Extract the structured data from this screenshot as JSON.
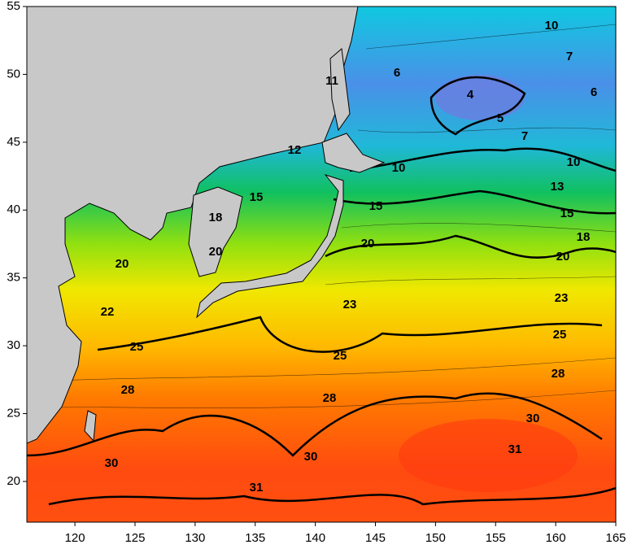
{
  "map": {
    "xlim": [
      116,
      165
    ],
    "ylim": [
      17,
      55
    ],
    "xticks": [
      120,
      125,
      130,
      135,
      140,
      145,
      150,
      155,
      160,
      165
    ],
    "yticks": [
      20,
      25,
      30,
      35,
      40,
      45,
      50,
      55
    ],
    "contour_labels": [
      10,
      7,
      6,
      4,
      6,
      5,
      7,
      11,
      12,
      10,
      10,
      13,
      15,
      15,
      15,
      18,
      18,
      20,
      20,
      20,
      20,
      22,
      23,
      23,
      25,
      25,
      25,
      28,
      28,
      28,
      30,
      30,
      30,
      31,
      31
    ]
  }
}
